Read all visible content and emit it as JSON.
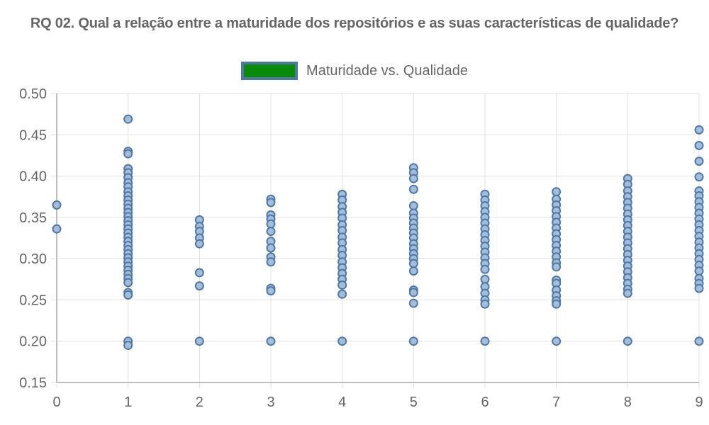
{
  "chart_data": {
    "type": "scatter",
    "title": "RQ 02. Qual a relação entre a maturidade dos repositórios e as suas características de qualidade?",
    "legend": {
      "label": "Maturidade vs. Qualidade",
      "placement": "top-center"
    },
    "xlim": [
      0,
      9
    ],
    "ylim": [
      0.15,
      0.5
    ],
    "x_ticks": [
      "0",
      "1",
      "2",
      "3",
      "4",
      "5",
      "6",
      "7",
      "8",
      "9"
    ],
    "y_ticks": [
      "0.15",
      "0.20",
      "0.25",
      "0.30",
      "0.35",
      "0.40",
      "0.45",
      "0.50"
    ],
    "grid": true,
    "colors": {
      "point_fill": "#a3bddb",
      "point_stroke": "#4e79a7",
      "legend_fill": "#0a8a0a",
      "grid": "#e0e0e0",
      "axis": "#aaaaaa"
    },
    "series": [
      {
        "points": [
          {
            "x": 0,
            "y": 0.365
          },
          {
            "x": 0,
            "y": 0.336
          },
          {
            "x": 1,
            "y": 0.469
          },
          {
            "x": 1,
            "y": 0.43
          },
          {
            "x": 1,
            "y": 0.427
          },
          {
            "x": 1,
            "y": 0.409
          },
          {
            "x": 1,
            "y": 0.404
          },
          {
            "x": 1,
            "y": 0.398
          },
          {
            "x": 1,
            "y": 0.392
          },
          {
            "x": 1,
            "y": 0.387
          },
          {
            "x": 1,
            "y": 0.381
          },
          {
            "x": 1,
            "y": 0.376
          },
          {
            "x": 1,
            "y": 0.371
          },
          {
            "x": 1,
            "y": 0.366
          },
          {
            "x": 1,
            "y": 0.361
          },
          {
            "x": 1,
            "y": 0.356
          },
          {
            "x": 1,
            "y": 0.351
          },
          {
            "x": 1,
            "y": 0.346
          },
          {
            "x": 1,
            "y": 0.341
          },
          {
            "x": 1,
            "y": 0.336
          },
          {
            "x": 1,
            "y": 0.331
          },
          {
            "x": 1,
            "y": 0.326
          },
          {
            "x": 1,
            "y": 0.321
          },
          {
            "x": 1,
            "y": 0.316
          },
          {
            "x": 1,
            "y": 0.311
          },
          {
            "x": 1,
            "y": 0.306
          },
          {
            "x": 1,
            "y": 0.301
          },
          {
            "x": 1,
            "y": 0.296
          },
          {
            "x": 1,
            "y": 0.291
          },
          {
            "x": 1,
            "y": 0.286
          },
          {
            "x": 1,
            "y": 0.281
          },
          {
            "x": 1,
            "y": 0.276
          },
          {
            "x": 1,
            "y": 0.271
          },
          {
            "x": 1,
            "y": 0.259
          },
          {
            "x": 1,
            "y": 0.256
          },
          {
            "x": 1,
            "y": 0.2
          },
          {
            "x": 1,
            "y": 0.195
          },
          {
            "x": 2,
            "y": 0.347
          },
          {
            "x": 2,
            "y": 0.339
          },
          {
            "x": 2,
            "y": 0.333
          },
          {
            "x": 2,
            "y": 0.325
          },
          {
            "x": 2,
            "y": 0.318
          },
          {
            "x": 2,
            "y": 0.283
          },
          {
            "x": 2,
            "y": 0.267
          },
          {
            "x": 2,
            "y": 0.2
          },
          {
            "x": 3,
            "y": 0.372
          },
          {
            "x": 3,
            "y": 0.368
          },
          {
            "x": 3,
            "y": 0.353
          },
          {
            "x": 3,
            "y": 0.348
          },
          {
            "x": 3,
            "y": 0.342
          },
          {
            "x": 3,
            "y": 0.333
          },
          {
            "x": 3,
            "y": 0.321
          },
          {
            "x": 3,
            "y": 0.313
          },
          {
            "x": 3,
            "y": 0.302
          },
          {
            "x": 3,
            "y": 0.296
          },
          {
            "x": 3,
            "y": 0.264
          },
          {
            "x": 3,
            "y": 0.261
          },
          {
            "x": 3,
            "y": 0.2
          },
          {
            "x": 4,
            "y": 0.378
          },
          {
            "x": 4,
            "y": 0.371
          },
          {
            "x": 4,
            "y": 0.363
          },
          {
            "x": 4,
            "y": 0.356
          },
          {
            "x": 4,
            "y": 0.349
          },
          {
            "x": 4,
            "y": 0.341
          },
          {
            "x": 4,
            "y": 0.334
          },
          {
            "x": 4,
            "y": 0.326
          },
          {
            "x": 4,
            "y": 0.319
          },
          {
            "x": 4,
            "y": 0.311
          },
          {
            "x": 4,
            "y": 0.304
          },
          {
            "x": 4,
            "y": 0.296
          },
          {
            "x": 4,
            "y": 0.289
          },
          {
            "x": 4,
            "y": 0.282
          },
          {
            "x": 4,
            "y": 0.275
          },
          {
            "x": 4,
            "y": 0.268
          },
          {
            "x": 4,
            "y": 0.257
          },
          {
            "x": 4,
            "y": 0.2
          },
          {
            "x": 5,
            "y": 0.41
          },
          {
            "x": 5,
            "y": 0.404
          },
          {
            "x": 5,
            "y": 0.397
          },
          {
            "x": 5,
            "y": 0.384
          },
          {
            "x": 5,
            "y": 0.364
          },
          {
            "x": 5,
            "y": 0.355
          },
          {
            "x": 5,
            "y": 0.349
          },
          {
            "x": 5,
            "y": 0.343
          },
          {
            "x": 5,
            "y": 0.337
          },
          {
            "x": 5,
            "y": 0.331
          },
          {
            "x": 5,
            "y": 0.325
          },
          {
            "x": 5,
            "y": 0.318
          },
          {
            "x": 5,
            "y": 0.312
          },
          {
            "x": 5,
            "y": 0.306
          },
          {
            "x": 5,
            "y": 0.3
          },
          {
            "x": 5,
            "y": 0.294
          },
          {
            "x": 5,
            "y": 0.285
          },
          {
            "x": 5,
            "y": 0.262
          },
          {
            "x": 5,
            "y": 0.259
          },
          {
            "x": 5,
            "y": 0.246
          },
          {
            "x": 5,
            "y": 0.2
          },
          {
            "x": 6,
            "y": 0.378
          },
          {
            "x": 6,
            "y": 0.371
          },
          {
            "x": 6,
            "y": 0.364
          },
          {
            "x": 6,
            "y": 0.357
          },
          {
            "x": 6,
            "y": 0.35
          },
          {
            "x": 6,
            "y": 0.343
          },
          {
            "x": 6,
            "y": 0.336
          },
          {
            "x": 6,
            "y": 0.329
          },
          {
            "x": 6,
            "y": 0.322
          },
          {
            "x": 6,
            "y": 0.315
          },
          {
            "x": 6,
            "y": 0.308
          },
          {
            "x": 6,
            "y": 0.301
          },
          {
            "x": 6,
            "y": 0.294
          },
          {
            "x": 6,
            "y": 0.287
          },
          {
            "x": 6,
            "y": 0.275
          },
          {
            "x": 6,
            "y": 0.266
          },
          {
            "x": 6,
            "y": 0.258
          },
          {
            "x": 6,
            "y": 0.25
          },
          {
            "x": 6,
            "y": 0.245
          },
          {
            "x": 6,
            "y": 0.2
          },
          {
            "x": 7,
            "y": 0.381
          },
          {
            "x": 7,
            "y": 0.372
          },
          {
            "x": 7,
            "y": 0.365
          },
          {
            "x": 7,
            "y": 0.358
          },
          {
            "x": 7,
            "y": 0.351
          },
          {
            "x": 7,
            "y": 0.344
          },
          {
            "x": 7,
            "y": 0.337
          },
          {
            "x": 7,
            "y": 0.33
          },
          {
            "x": 7,
            "y": 0.323
          },
          {
            "x": 7,
            "y": 0.316
          },
          {
            "x": 7,
            "y": 0.309
          },
          {
            "x": 7,
            "y": 0.302
          },
          {
            "x": 7,
            "y": 0.295
          },
          {
            "x": 7,
            "y": 0.29
          },
          {
            "x": 7,
            "y": 0.274
          },
          {
            "x": 7,
            "y": 0.27
          },
          {
            "x": 7,
            "y": 0.262
          },
          {
            "x": 7,
            "y": 0.255
          },
          {
            "x": 7,
            "y": 0.249
          },
          {
            "x": 7,
            "y": 0.245
          },
          {
            "x": 7,
            "y": 0.2
          },
          {
            "x": 8,
            "y": 0.397
          },
          {
            "x": 8,
            "y": 0.39
          },
          {
            "x": 8,
            "y": 0.382
          },
          {
            "x": 8,
            "y": 0.375
          },
          {
            "x": 8,
            "y": 0.368
          },
          {
            "x": 8,
            "y": 0.361
          },
          {
            "x": 8,
            "y": 0.354
          },
          {
            "x": 8,
            "y": 0.347
          },
          {
            "x": 8,
            "y": 0.34
          },
          {
            "x": 8,
            "y": 0.333
          },
          {
            "x": 8,
            "y": 0.326
          },
          {
            "x": 8,
            "y": 0.319
          },
          {
            "x": 8,
            "y": 0.312
          },
          {
            "x": 8,
            "y": 0.305
          },
          {
            "x": 8,
            "y": 0.298
          },
          {
            "x": 8,
            "y": 0.291
          },
          {
            "x": 8,
            "y": 0.284
          },
          {
            "x": 8,
            "y": 0.277
          },
          {
            "x": 8,
            "y": 0.27
          },
          {
            "x": 8,
            "y": 0.263
          },
          {
            "x": 8,
            "y": 0.258
          },
          {
            "x": 8,
            "y": 0.2
          },
          {
            "x": 9,
            "y": 0.456
          },
          {
            "x": 9,
            "y": 0.437
          },
          {
            "x": 9,
            "y": 0.418
          },
          {
            "x": 9,
            "y": 0.399
          },
          {
            "x": 9,
            "y": 0.382
          },
          {
            "x": 9,
            "y": 0.376
          },
          {
            "x": 9,
            "y": 0.369
          },
          {
            "x": 9,
            "y": 0.362
          },
          {
            "x": 9,
            "y": 0.355
          },
          {
            "x": 9,
            "y": 0.348
          },
          {
            "x": 9,
            "y": 0.341
          },
          {
            "x": 9,
            "y": 0.334
          },
          {
            "x": 9,
            "y": 0.327
          },
          {
            "x": 9,
            "y": 0.32
          },
          {
            "x": 9,
            "y": 0.313
          },
          {
            "x": 9,
            "y": 0.306
          },
          {
            "x": 9,
            "y": 0.299
          },
          {
            "x": 9,
            "y": 0.292
          },
          {
            "x": 9,
            "y": 0.285
          },
          {
            "x": 9,
            "y": 0.276
          },
          {
            "x": 9,
            "y": 0.27
          },
          {
            "x": 9,
            "y": 0.264
          },
          {
            "x": 9,
            "y": 0.2
          }
        ]
      }
    ]
  }
}
